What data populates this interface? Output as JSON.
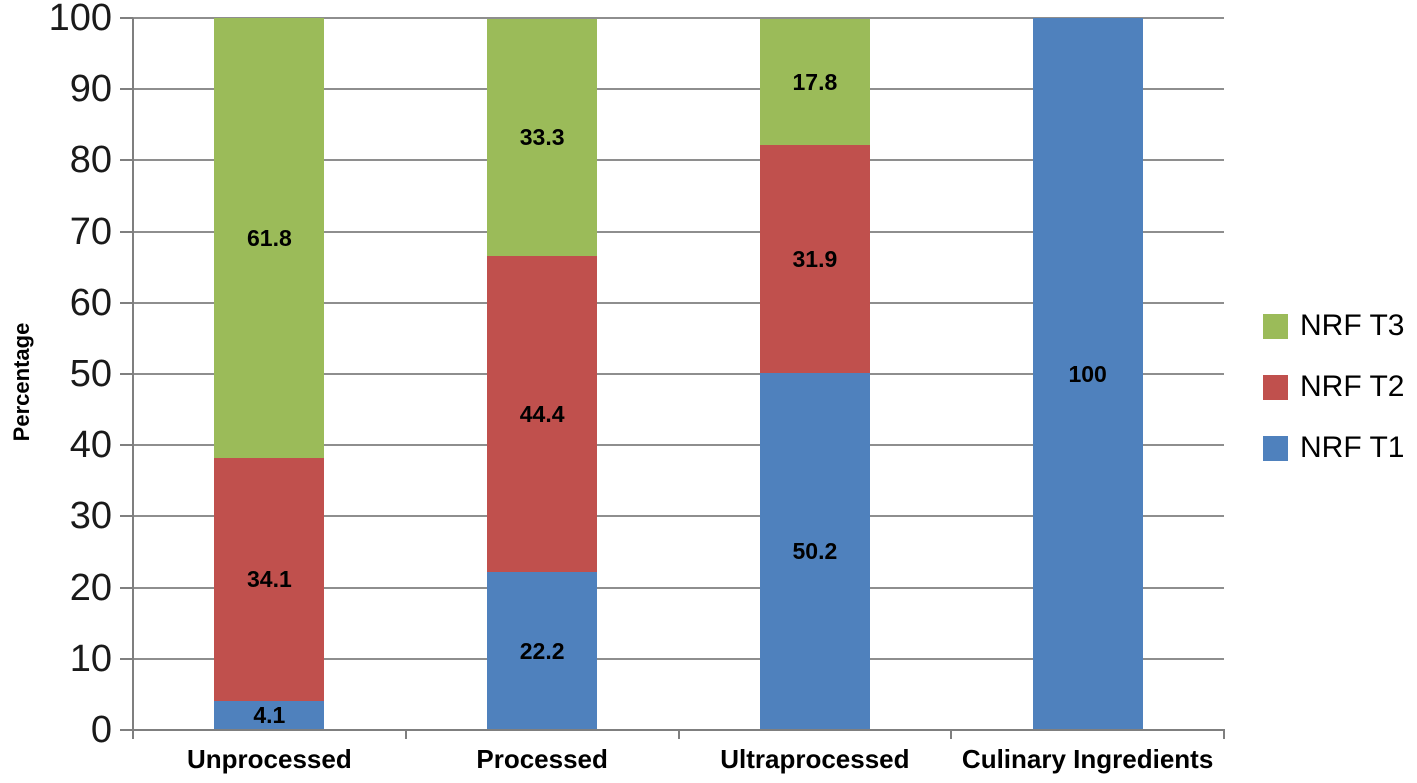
{
  "chart_data": {
    "type": "bar",
    "subtype": "stacked-column",
    "title": "",
    "xlabel": "",
    "ylabel": "Percentage",
    "ylim": [
      0,
      100
    ],
    "yticks": [
      0,
      10,
      20,
      30,
      40,
      50,
      60,
      70,
      80,
      90,
      100
    ],
    "grid": true,
    "legend_position": "right",
    "data_labels_shown": true,
    "categories": [
      "Unprocessed",
      "Processed",
      "Ultraprocessed",
      "Culinary Ingredients"
    ],
    "series": [
      {
        "name": "NRF T1",
        "color": "#4F81BD",
        "values": [
          4.1,
          22.2,
          50.2,
          100
        ]
      },
      {
        "name": "NRF T2",
        "color": "#C0504D",
        "values": [
          34.1,
          44.4,
          31.9,
          null
        ]
      },
      {
        "name": "NRF T3",
        "color": "#9BBB59",
        "values": [
          61.8,
          33.3,
          17.8,
          null
        ]
      }
    ],
    "legend_order": [
      "NRF T3",
      "NRF T2",
      "NRF T1"
    ],
    "colors": {
      "grid": "#8e8e8e",
      "axis": "#7f7f7f",
      "text": "#000000",
      "background": "#ffffff"
    }
  }
}
